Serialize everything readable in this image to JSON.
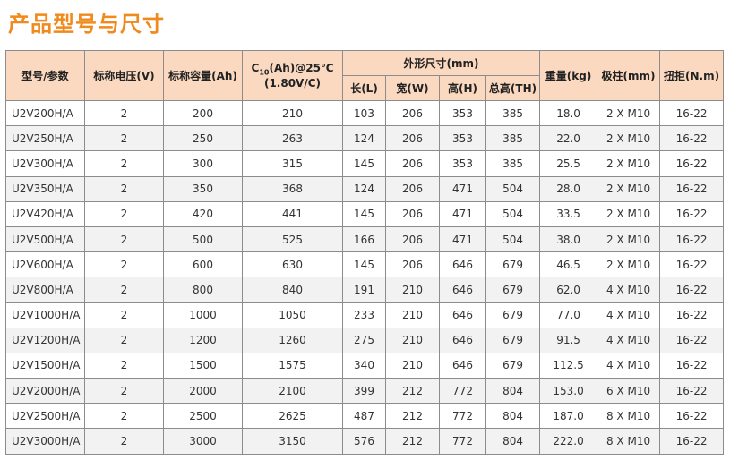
{
  "title": "产品型号与尺寸",
  "header": {
    "model": "型号/参数",
    "voltage": "标称电压(V)",
    "capacity": "标称容量(Ah)",
    "c10_prefix": "C",
    "c10_sub": "10",
    "c10_suffix": "(Ah)@25℃",
    "c10_line2": "(1.80V/C)",
    "dimensions": "外形尺寸(mm)",
    "length": "长(L)",
    "width": "宽(W)",
    "height": "高(H)",
    "total_height": "总高(TH)",
    "weight": "重量(kg)",
    "terminal": "极柱(mm)",
    "torque": "扭拒(N.m)"
  },
  "rows": [
    {
      "model": "U2V200H/A",
      "voltage": "2",
      "capacity": "200",
      "c10": "210",
      "l": "103",
      "w": "206",
      "h": "353",
      "th": "385",
      "weight": "18.0",
      "terminal": "2 X M10",
      "torque": "16-22"
    },
    {
      "model": "U2V250H/A",
      "voltage": "2",
      "capacity": "250",
      "c10": "263",
      "l": "124",
      "w": "206",
      "h": "353",
      "th": "385",
      "weight": "22.0",
      "terminal": "2 X M10",
      "torque": "16-22"
    },
    {
      "model": "U2V300H/A",
      "voltage": "2",
      "capacity": "300",
      "c10": "315",
      "l": "145",
      "w": "206",
      "h": "353",
      "th": "385",
      "weight": "25.5",
      "terminal": "2 X M10",
      "torque": "16-22"
    },
    {
      "model": "U2V350H/A",
      "voltage": "2",
      "capacity": "350",
      "c10": "368",
      "l": "124",
      "w": "206",
      "h": "471",
      "th": "504",
      "weight": "28.0",
      "terminal": "2 X M10",
      "torque": "16-22"
    },
    {
      "model": "U2V420H/A",
      "voltage": "2",
      "capacity": "420",
      "c10": "441",
      "l": "145",
      "w": "206",
      "h": "471",
      "th": "504",
      "weight": "33.5",
      "terminal": "2 X M10",
      "torque": "16-22"
    },
    {
      "model": "U2V500H/A",
      "voltage": "2",
      "capacity": "500",
      "c10": "525",
      "l": "166",
      "w": "206",
      "h": "471",
      "th": "504",
      "weight": "38.0",
      "terminal": "2 X M10",
      "torque": "16-22"
    },
    {
      "model": "U2V600H/A",
      "voltage": "2",
      "capacity": "600",
      "c10": "630",
      "l": "145",
      "w": "206",
      "h": "646",
      "th": "679",
      "weight": "46.5",
      "terminal": "2 X M10",
      "torque": "16-22"
    },
    {
      "model": "U2V800H/A",
      "voltage": "2",
      "capacity": "800",
      "c10": "840",
      "l": "191",
      "w": "210",
      "h": "646",
      "th": "679",
      "weight": "62.0",
      "terminal": "4 X M10",
      "torque": "16-22"
    },
    {
      "model": "U2V1000H/A",
      "voltage": "2",
      "capacity": "1000",
      "c10": "1050",
      "l": "233",
      "w": "210",
      "h": "646",
      "th": "679",
      "weight": "77.0",
      "terminal": "4 X M10",
      "torque": "16-22"
    },
    {
      "model": "U2V1200H/A",
      "voltage": "2",
      "capacity": "1200",
      "c10": "1260",
      "l": "275",
      "w": "210",
      "h": "646",
      "th": "679",
      "weight": "91.5",
      "terminal": "4 X M10",
      "torque": "16-22"
    },
    {
      "model": "U2V1500H/A",
      "voltage": "2",
      "capacity": "1500",
      "c10": "1575",
      "l": "340",
      "w": "210",
      "h": "646",
      "th": "679",
      "weight": "112.5",
      "terminal": "4 X M10",
      "torque": "16-22"
    },
    {
      "model": "U2V2000H/A",
      "voltage": "2",
      "capacity": "2000",
      "c10": "2100",
      "l": "399",
      "w": "212",
      "h": "772",
      "th": "804",
      "weight": "153.0",
      "terminal": "6 X M10",
      "torque": "16-22"
    },
    {
      "model": "U2V2500H/A",
      "voltage": "2",
      "capacity": "2500",
      "c10": "2625",
      "l": "487",
      "w": "212",
      "h": "772",
      "th": "804",
      "weight": "187.0",
      "terminal": "8 X M10",
      "torque": "16-22"
    },
    {
      "model": "U2V3000H/A",
      "voltage": "2",
      "capacity": "3000",
      "c10": "3150",
      "l": "576",
      "w": "212",
      "h": "772",
      "th": "804",
      "weight": "222.0",
      "terminal": "8 X M10",
      "torque": "16-22"
    }
  ]
}
